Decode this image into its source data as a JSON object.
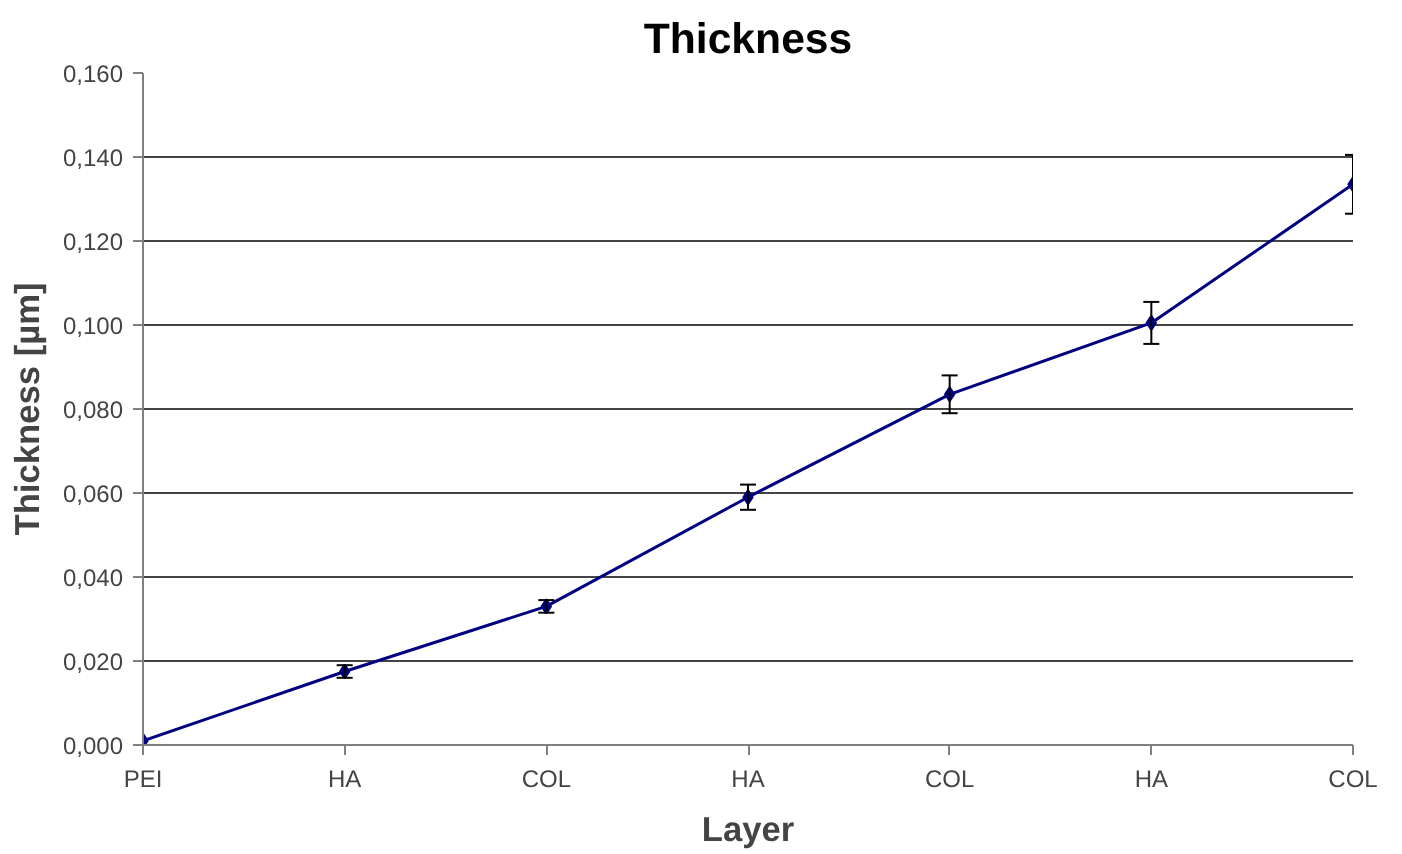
{
  "chart_data": {
    "type": "line",
    "title": "Thickness",
    "xlabel": "Layer",
    "ylabel": "Thickness [µm]",
    "categories": [
      "PEI",
      "HA",
      "COL",
      "HA",
      "COL",
      "HA",
      "COL"
    ],
    "series": [
      {
        "color": "#000080",
        "values": [
          0.001,
          0.0175,
          0.033,
          0.059,
          0.0835,
          0.1005,
          0.1335
        ],
        "errors": [
          null,
          0.0015,
          0.0015,
          0.003,
          0.0045,
          0.005,
          0.007
        ]
      }
    ],
    "ylim": [
      0,
      0.16
    ],
    "yticks": [
      {
        "value": 0,
        "label": "0,000"
      },
      {
        "value": 0.02,
        "label": "0,020"
      },
      {
        "value": 0.04,
        "label": "0,040"
      },
      {
        "value": 0.06,
        "label": "0,060"
      },
      {
        "value": 0.08,
        "label": "0,080"
      },
      {
        "value": 0.1,
        "label": "0,100"
      },
      {
        "value": 0.12,
        "label": "0,120"
      },
      {
        "value": 0.14,
        "label": "0,140"
      },
      {
        "value": 0.16,
        "label": "0,160"
      }
    ],
    "grid": "y",
    "marker": "diamond",
    "line_style": "solid"
  }
}
